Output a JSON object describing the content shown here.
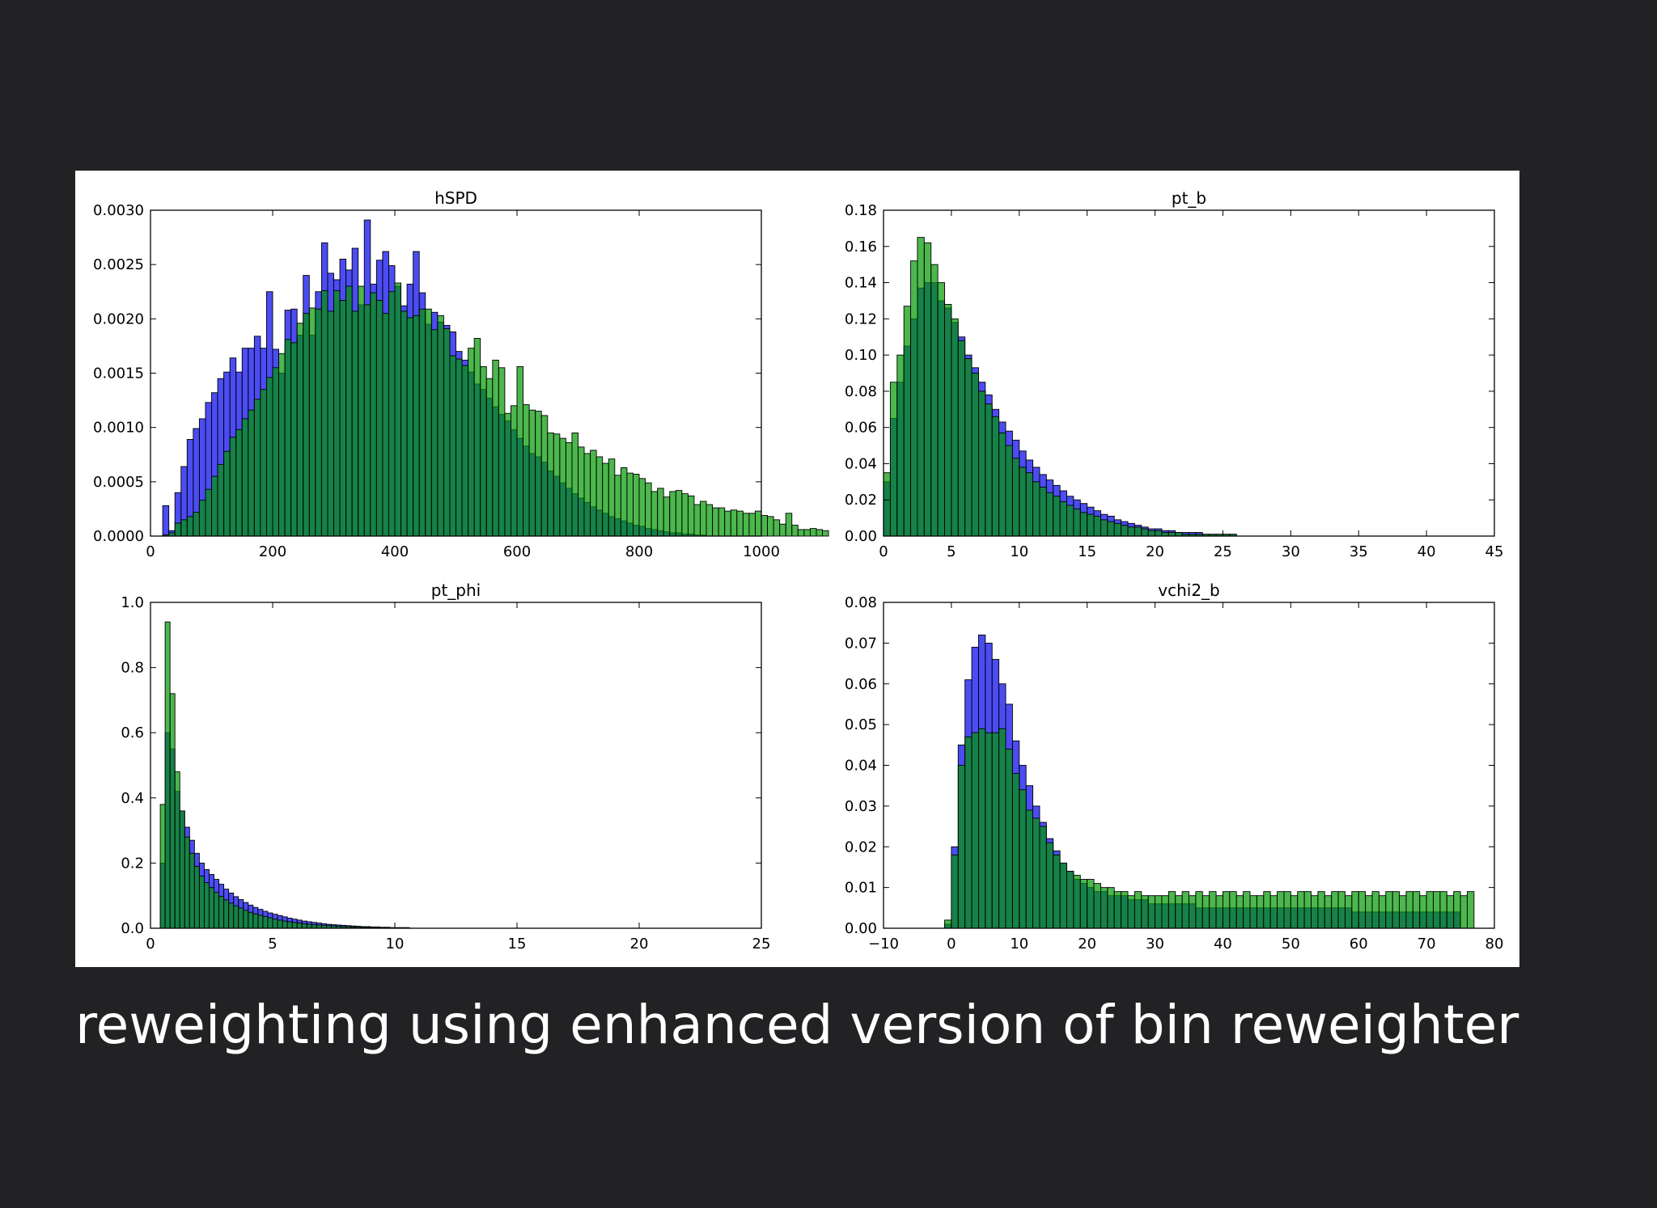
{
  "caption": "reweighting using enhanced version of bin reweighter",
  "colors": {
    "original": "#0000ee",
    "reweighted": "#009900",
    "background": "#222224"
  },
  "chart_data": [
    {
      "type": "bar",
      "title": "hSPD",
      "xlim": [
        0,
        1000
      ],
      "ylim": [
        0,
        0.003
      ],
      "xticks": [
        "0",
        "200",
        "400",
        "600",
        "800",
        "1000"
      ],
      "yticks": [
        "0.0000",
        "0.0005",
        "0.0010",
        "0.0015",
        "0.0020",
        "0.0025",
        "0.0030"
      ],
      "bins": {
        "start": 20,
        "width": 10
      },
      "series": [
        {
          "values": [
            0.00028,
            5e-05,
            0.0004,
            0.00064,
            0.00089,
            0.00099,
            0.00108,
            0.00123,
            0.00132,
            0.00145,
            0.00151,
            0.00164,
            0.00151,
            0.00173,
            0.00173,
            0.00184,
            0.00173,
            0.00225,
            0.00172,
            0.0015,
            0.00208,
            0.00209,
            0.00185,
            0.0024,
            0.00185,
            0.00225,
            0.0027,
            0.00242,
            0.00236,
            0.00255,
            0.00245,
            0.00265,
            0.00213,
            0.00291,
            0.00232,
            0.00254,
            0.00262,
            0.00249,
            0.0023,
            0.00212,
            0.00232,
            0.00262,
            0.00224,
            0.00195,
            0.00206,
            0.00197,
            0.00194,
            0.00188,
            0.0017,
            0.00162,
            0.00151,
            0.0014,
            0.00135,
            0.00127,
            0.00119,
            0.00112,
            0.00106,
            0.00098,
            0.0009,
            0.00083,
            0.00076,
            0.00073,
            0.00068,
            0.0006,
            0.00055,
            0.00049,
            0.00044,
            0.00039,
            0.00035,
            0.00031,
            0.00027,
            0.00024,
            0.00021,
            0.00018,
            0.00016,
            0.00014,
            0.00012,
            0.0001,
            9e-05,
            7e-05,
            6e-05,
            5e-05,
            4e-05,
            3e-05,
            3e-05,
            2e-05,
            2e-05,
            1e-05,
            1e-05
          ]
        },
        {
          "values": [
            1e-05,
            3e-05,
            0.00012,
            0.00015,
            0.00018,
            0.00022,
            0.00033,
            0.00043,
            0.00055,
            0.00066,
            0.00078,
            0.00091,
            0.00098,
            0.00108,
            0.00116,
            0.00126,
            0.00135,
            0.00146,
            0.00155,
            0.00168,
            0.00181,
            0.00178,
            0.00196,
            0.00205,
            0.0021,
            0.00209,
            0.00226,
            0.00207,
            0.00226,
            0.00217,
            0.0023,
            0.00207,
            0.0023,
            0.00213,
            0.00224,
            0.00217,
            0.00205,
            0.00225,
            0.00233,
            0.00207,
            0.00201,
            0.00203,
            0.00209,
            0.00209,
            0.0019,
            0.00203,
            0.00191,
            0.00166,
            0.00163,
            0.00157,
            0.00173,
            0.00182,
            0.00156,
            0.00145,
            0.00162,
            0.00155,
            0.00113,
            0.0012,
            0.00156,
            0.00121,
            0.00116,
            0.00115,
            0.00111,
            0.00095,
            0.00094,
            0.0009,
            0.00086,
            0.00095,
            0.00082,
            0.00076,
            0.00079,
            0.00073,
            0.00067,
            0.00071,
            0.00056,
            0.00063,
            0.00058,
            0.00057,
            0.00053,
            0.00049,
            0.00041,
            0.00044,
            0.00036,
            0.00041,
            0.00042,
            0.00039,
            0.00037,
            0.00029,
            0.00032,
            0.00029,
            0.00026,
            0.00026,
            0.00023,
            0.00024,
            0.00023,
            0.00021,
            0.00021,
            0.00023,
            0.00019,
            0.00018,
            0.00015,
            0.00011,
            0.00021,
            0.0001,
            6e-05,
            6e-05,
            7e-05,
            6e-05,
            5e-05
          ]
        }
      ]
    },
    {
      "type": "bar",
      "title": "pt_b",
      "xlim": [
        0,
        45
      ],
      "ylim": [
        0,
        0.18
      ],
      "xticks": [
        "0",
        "5",
        "10",
        "15",
        "20",
        "25",
        "30",
        "35",
        "40",
        "45"
      ],
      "yticks": [
        "0.00",
        "0.02",
        "0.04",
        "0.06",
        "0.08",
        "0.10",
        "0.12",
        "0.14",
        "0.16",
        "0.18"
      ],
      "bins": {
        "start": 0,
        "width": 0.5
      },
      "series": [
        {
          "values": [
            0.03,
            0.065,
            0.085,
            0.105,
            0.12,
            0.137,
            0.14,
            0.14,
            0.13,
            0.126,
            0.118,
            0.11,
            0.1,
            0.093,
            0.085,
            0.078,
            0.07,
            0.063,
            0.058,
            0.053,
            0.047,
            0.042,
            0.038,
            0.034,
            0.031,
            0.028,
            0.025,
            0.022,
            0.02,
            0.018,
            0.016,
            0.014,
            0.012,
            0.011,
            0.009,
            0.008,
            0.007,
            0.006,
            0.005,
            0.004,
            0.004,
            0.003,
            0.003,
            0.002,
            0.002,
            0.002,
            0.002,
            0.001,
            0.001,
            0.001,
            0.001,
            0.001
          ]
        },
        {
          "values": [
            0.035,
            0.085,
            0.1,
            0.127,
            0.152,
            0.165,
            0.162,
            0.15,
            0.14,
            0.128,
            0.12,
            0.108,
            0.098,
            0.09,
            0.08,
            0.073,
            0.066,
            0.057,
            0.05,
            0.043,
            0.038,
            0.035,
            0.03,
            0.027,
            0.024,
            0.022,
            0.019,
            0.017,
            0.015,
            0.013,
            0.012,
            0.011,
            0.009,
            0.008,
            0.007,
            0.006,
            0.005,
            0.005,
            0.004,
            0.003,
            0.003,
            0.002,
            0.002,
            0.002,
            0.001,
            0.001,
            0.001,
            0.001,
            0.001,
            0.001,
            0.001,
            0.001
          ]
        }
      ]
    },
    {
      "type": "bar",
      "title": "pt_phi",
      "xlim": [
        0,
        25
      ],
      "ylim": [
        0,
        1.0
      ],
      "xticks": [
        "0",
        "5",
        "10",
        "15",
        "20",
        "25"
      ],
      "yticks": [
        "0.0",
        "0.2",
        "0.4",
        "0.6",
        "0.8",
        "1.0"
      ],
      "bins": {
        "start": 0.4,
        "width": 0.2
      },
      "series": [
        {
          "values": [
            0.2,
            0.6,
            0.55,
            0.42,
            0.36,
            0.31,
            0.27,
            0.23,
            0.2,
            0.18,
            0.165,
            0.15,
            0.135,
            0.12,
            0.108,
            0.097,
            0.088,
            0.079,
            0.071,
            0.064,
            0.058,
            0.052,
            0.047,
            0.043,
            0.039,
            0.035,
            0.031,
            0.028,
            0.025,
            0.022,
            0.02,
            0.018,
            0.016,
            0.014,
            0.012,
            0.011,
            0.01,
            0.009,
            0.008,
            0.007,
            0.006,
            0.005,
            0.005,
            0.004,
            0.004,
            0.003,
            0.003,
            0.002,
            0.002,
            0.002,
            0.002
          ]
        },
        {
          "values": [
            0.38,
            0.94,
            0.72,
            0.48,
            0.36,
            0.28,
            0.23,
            0.19,
            0.16,
            0.14,
            0.125,
            0.11,
            0.098,
            0.087,
            0.077,
            0.069,
            0.062,
            0.055,
            0.049,
            0.044,
            0.04,
            0.036,
            0.032,
            0.028,
            0.025,
            0.022,
            0.02,
            0.018,
            0.016,
            0.014,
            0.012,
            0.011,
            0.01,
            0.009,
            0.008,
            0.007,
            0.006,
            0.005,
            0.005,
            0.004,
            0.004,
            0.003,
            0.003,
            0.002,
            0.002,
            0.002,
            0.002,
            0.001,
            0.001,
            0.001,
            0.001
          ]
        }
      ]
    },
    {
      "type": "bar",
      "title": "vchi2_b",
      "xlim": [
        -10,
        80
      ],
      "ylim": [
        0,
        0.08
      ],
      "xticks": [
        "−10",
        "0",
        "10",
        "20",
        "30",
        "40",
        "50",
        "60",
        "70",
        "80"
      ],
      "yticks": [
        "0.00",
        "0.01",
        "0.02",
        "0.03",
        "0.04",
        "0.05",
        "0.06",
        "0.07",
        "0.08"
      ],
      "bins": {
        "start": -1,
        "width": 1
      },
      "series": [
        {
          "values": [
            0.001,
            0.02,
            0.045,
            0.061,
            0.069,
            0.072,
            0.07,
            0.066,
            0.06,
            0.055,
            0.046,
            0.04,
            0.035,
            0.03,
            0.026,
            0.022,
            0.019,
            0.016,
            0.014,
            0.012,
            0.011,
            0.01,
            0.009,
            0.009,
            0.008,
            0.008,
            0.008,
            0.007,
            0.007,
            0.007,
            0.006,
            0.006,
            0.006,
            0.006,
            0.006,
            0.006,
            0.006,
            0.005,
            0.005,
            0.005,
            0.005,
            0.005,
            0.005,
            0.005,
            0.005,
            0.005,
            0.005,
            0.005,
            0.005,
            0.005,
            0.005,
            0.005,
            0.005,
            0.005,
            0.005,
            0.005,
            0.005,
            0.005,
            0.005,
            0.005,
            0.004,
            0.004,
            0.004,
            0.004,
            0.004,
            0.004,
            0.004,
            0.004,
            0.004,
            0.004,
            0.004,
            0.004,
            0.004,
            0.004,
            0.004,
            0.004
          ]
        },
        {
          "values": [
            0.002,
            0.018,
            0.04,
            0.047,
            0.048,
            0.049,
            0.048,
            0.048,
            0.049,
            0.044,
            0.038,
            0.034,
            0.029,
            0.027,
            0.025,
            0.021,
            0.018,
            0.016,
            0.014,
            0.013,
            0.012,
            0.012,
            0.011,
            0.01,
            0.01,
            0.009,
            0.009,
            0.008,
            0.009,
            0.008,
            0.008,
            0.008,
            0.008,
            0.009,
            0.008,
            0.009,
            0.008,
            0.009,
            0.008,
            0.009,
            0.008,
            0.009,
            0.009,
            0.008,
            0.009,
            0.008,
            0.008,
            0.009,
            0.008,
            0.009,
            0.009,
            0.008,
            0.009,
            0.009,
            0.008,
            0.009,
            0.008,
            0.009,
            0.009,
            0.008,
            0.009,
            0.009,
            0.008,
            0.009,
            0.008,
            0.009,
            0.009,
            0.008,
            0.009,
            0.009,
            0.008,
            0.009,
            0.009,
            0.009,
            0.008,
            0.009,
            0.008,
            0.009
          ]
        }
      ]
    }
  ]
}
